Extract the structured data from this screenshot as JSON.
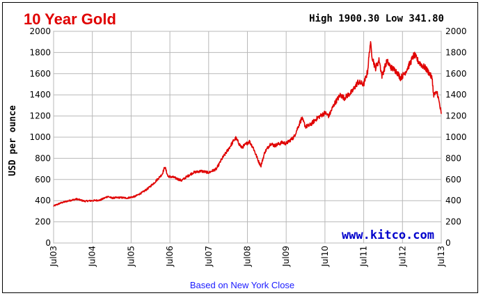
{
  "chart_data": {
    "type": "line",
    "title": "10 Year Gold",
    "high_low": "High 1900.30 Low 341.80",
    "ylabel": "USD per ounce",
    "source": "www.kitco.com",
    "footnote": "Based on New York Close",
    "ylim": [
      0,
      2000
    ],
    "y_ticks": [
      0,
      200,
      400,
      600,
      800,
      1000,
      1200,
      1400,
      1600,
      1800,
      2000
    ],
    "x_ticks": [
      "Jul03",
      "Jul04",
      "Jul05",
      "Jul06",
      "Jul07",
      "Jul08",
      "Jul09",
      "Jul10",
      "Jul11",
      "Jul12",
      "Jul13"
    ],
    "grid": true,
    "line_color": "#e00000",
    "series": [
      {
        "values": [
          [
            2003.5,
            350
          ],
          [
            2003.7,
            380
          ],
          [
            2003.9,
            400
          ],
          [
            2004.1,
            415
          ],
          [
            2004.3,
            395
          ],
          [
            2004.5,
            400
          ],
          [
            2004.7,
            405
          ],
          [
            2004.9,
            440
          ],
          [
            2005.0,
            425
          ],
          [
            2005.2,
            430
          ],
          [
            2005.4,
            425
          ],
          [
            2005.6,
            440
          ],
          [
            2005.8,
            480
          ],
          [
            2005.95,
            520
          ],
          [
            2006.1,
            570
          ],
          [
            2006.3,
            650
          ],
          [
            2006.37,
            720
          ],
          [
            2006.45,
            630
          ],
          [
            2006.6,
            620
          ],
          [
            2006.8,
            590
          ],
          [
            2006.95,
            630
          ],
          [
            2007.1,
            665
          ],
          [
            2007.3,
            680
          ],
          [
            2007.5,
            665
          ],
          [
            2007.7,
            700
          ],
          [
            2007.85,
            800
          ],
          [
            2008.0,
            880
          ],
          [
            2008.15,
            970
          ],
          [
            2008.2,
            990
          ],
          [
            2008.35,
            900
          ],
          [
            2008.45,
            930
          ],
          [
            2008.55,
            960
          ],
          [
            2008.65,
            900
          ],
          [
            2008.8,
            760
          ],
          [
            2008.85,
            730
          ],
          [
            2008.95,
            860
          ],
          [
            2009.1,
            940
          ],
          [
            2009.2,
            920
          ],
          [
            2009.4,
            950
          ],
          [
            2009.5,
            940
          ],
          [
            2009.7,
            1000
          ],
          [
            2009.9,
            1180
          ],
          [
            2010.0,
            1100
          ],
          [
            2010.1,
            1110
          ],
          [
            2010.3,
            1180
          ],
          [
            2010.5,
            1230
          ],
          [
            2010.6,
            1200
          ],
          [
            2010.75,
            1320
          ],
          [
            2010.9,
            1400
          ],
          [
            2011.0,
            1370
          ],
          [
            2011.2,
            1430
          ],
          [
            2011.35,
            1520
          ],
          [
            2011.5,
            1500
          ],
          [
            2011.6,
            1620
          ],
          [
            2011.67,
            1890
          ],
          [
            2011.72,
            1760
          ],
          [
            2011.8,
            1650
          ],
          [
            2011.9,
            1730
          ],
          [
            2011.97,
            1580
          ],
          [
            2012.1,
            1720
          ],
          [
            2012.2,
            1660
          ],
          [
            2012.35,
            1620
          ],
          [
            2012.45,
            1560
          ],
          [
            2012.55,
            1600
          ],
          [
            2012.7,
            1700
          ],
          [
            2012.8,
            1780
          ],
          [
            2012.9,
            1720
          ],
          [
            2013.0,
            1680
          ],
          [
            2013.1,
            1650
          ],
          [
            2013.2,
            1600
          ],
          [
            2013.27,
            1550
          ],
          [
            2013.3,
            1400
          ],
          [
            2013.4,
            1420
          ],
          [
            2013.46,
            1300
          ],
          [
            2013.5,
            1220
          ]
        ]
      }
    ]
  }
}
